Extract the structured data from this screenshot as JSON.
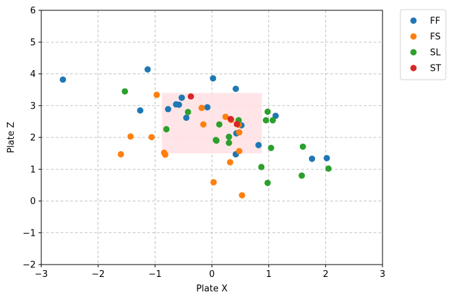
{
  "chart_data": {
    "type": "scatter",
    "title": "",
    "xlabel": "Plate X",
    "ylabel": "Plate Z",
    "xlim": [
      -3,
      3
    ],
    "ylim": [
      -2,
      6
    ],
    "xticks": [
      -3,
      -2,
      -1,
      0,
      1,
      2,
      3
    ],
    "yticks": [
      -2,
      -1,
      0,
      1,
      2,
      3,
      4,
      5,
      6
    ],
    "xtick_labels": [
      "−3",
      "−2",
      "−1",
      "0",
      "1",
      "2",
      "3"
    ],
    "ytick_labels": [
      "−2",
      "−1",
      "0",
      "1",
      "2",
      "3",
      "4",
      "5",
      "6"
    ],
    "grid": true,
    "legend_position": "outside-top-right",
    "strike_zone": {
      "x": [
        -0.88,
        0.88
      ],
      "z": [
        1.5,
        3.4
      ],
      "color": "#ffe0e3"
    },
    "series": [
      {
        "name": "FF",
        "color": "#1f77b4",
        "points": [
          [
            -2.62,
            3.82
          ],
          [
            -1.13,
            4.14
          ],
          [
            -1.26,
            2.85
          ],
          [
            0.02,
            3.86
          ],
          [
            0.42,
            3.53
          ],
          [
            -0.53,
            3.25
          ],
          [
            -0.63,
            3.04
          ],
          [
            -0.58,
            3.03
          ],
          [
            -0.77,
            2.89
          ],
          [
            -0.08,
            2.95
          ],
          [
            -0.45,
            2.62
          ],
          [
            0.52,
            2.38
          ],
          [
            0.43,
            2.13
          ],
          [
            0.82,
            1.76
          ],
          [
            1.12,
            2.68
          ],
          [
            0.42,
            1.47
          ],
          [
            1.76,
            1.33
          ],
          [
            2.02,
            1.35
          ]
        ]
      },
      {
        "name": "FS",
        "color": "#ff7f0e",
        "points": [
          [
            -0.97,
            3.34
          ],
          [
            -0.18,
            2.93
          ],
          [
            -1.43,
            2.03
          ],
          [
            -1.06,
            2.01
          ],
          [
            -1.6,
            1.47
          ],
          [
            -0.84,
            1.52
          ],
          [
            -0.82,
            1.46
          ],
          [
            -0.15,
            2.41
          ],
          [
            0.24,
            2.65
          ],
          [
            0.34,
            2.55
          ],
          [
            0.47,
            2.4
          ],
          [
            0.48,
            2.16
          ],
          [
            0.48,
            1.57
          ],
          [
            0.32,
            1.22
          ],
          [
            0.03,
            0.59
          ],
          [
            0.53,
            0.18
          ]
        ]
      },
      {
        "name": "SL",
        "color": "#2ca02c",
        "points": [
          [
            -1.53,
            3.45
          ],
          [
            -0.42,
            2.8
          ],
          [
            -0.8,
            2.26
          ],
          [
            0.13,
            2.41
          ],
          [
            0.47,
            2.54
          ],
          [
            0.3,
            2.02
          ],
          [
            0.08,
            1.9
          ],
          [
            0.07,
            1.92
          ],
          [
            0.3,
            1.83
          ],
          [
            0.95,
            2.54
          ],
          [
            0.98,
            2.81
          ],
          [
            1.07,
            2.54
          ],
          [
            1.04,
            1.67
          ],
          [
            0.87,
            1.07
          ],
          [
            0.98,
            0.57
          ],
          [
            1.6,
            1.71
          ],
          [
            1.58,
            0.8
          ],
          [
            2.05,
            1.02
          ]
        ]
      },
      {
        "name": "ST",
        "color": "#d62728",
        "points": [
          [
            -0.37,
            3.29
          ],
          [
            0.33,
            2.58
          ],
          [
            0.44,
            2.42
          ]
        ]
      }
    ]
  }
}
